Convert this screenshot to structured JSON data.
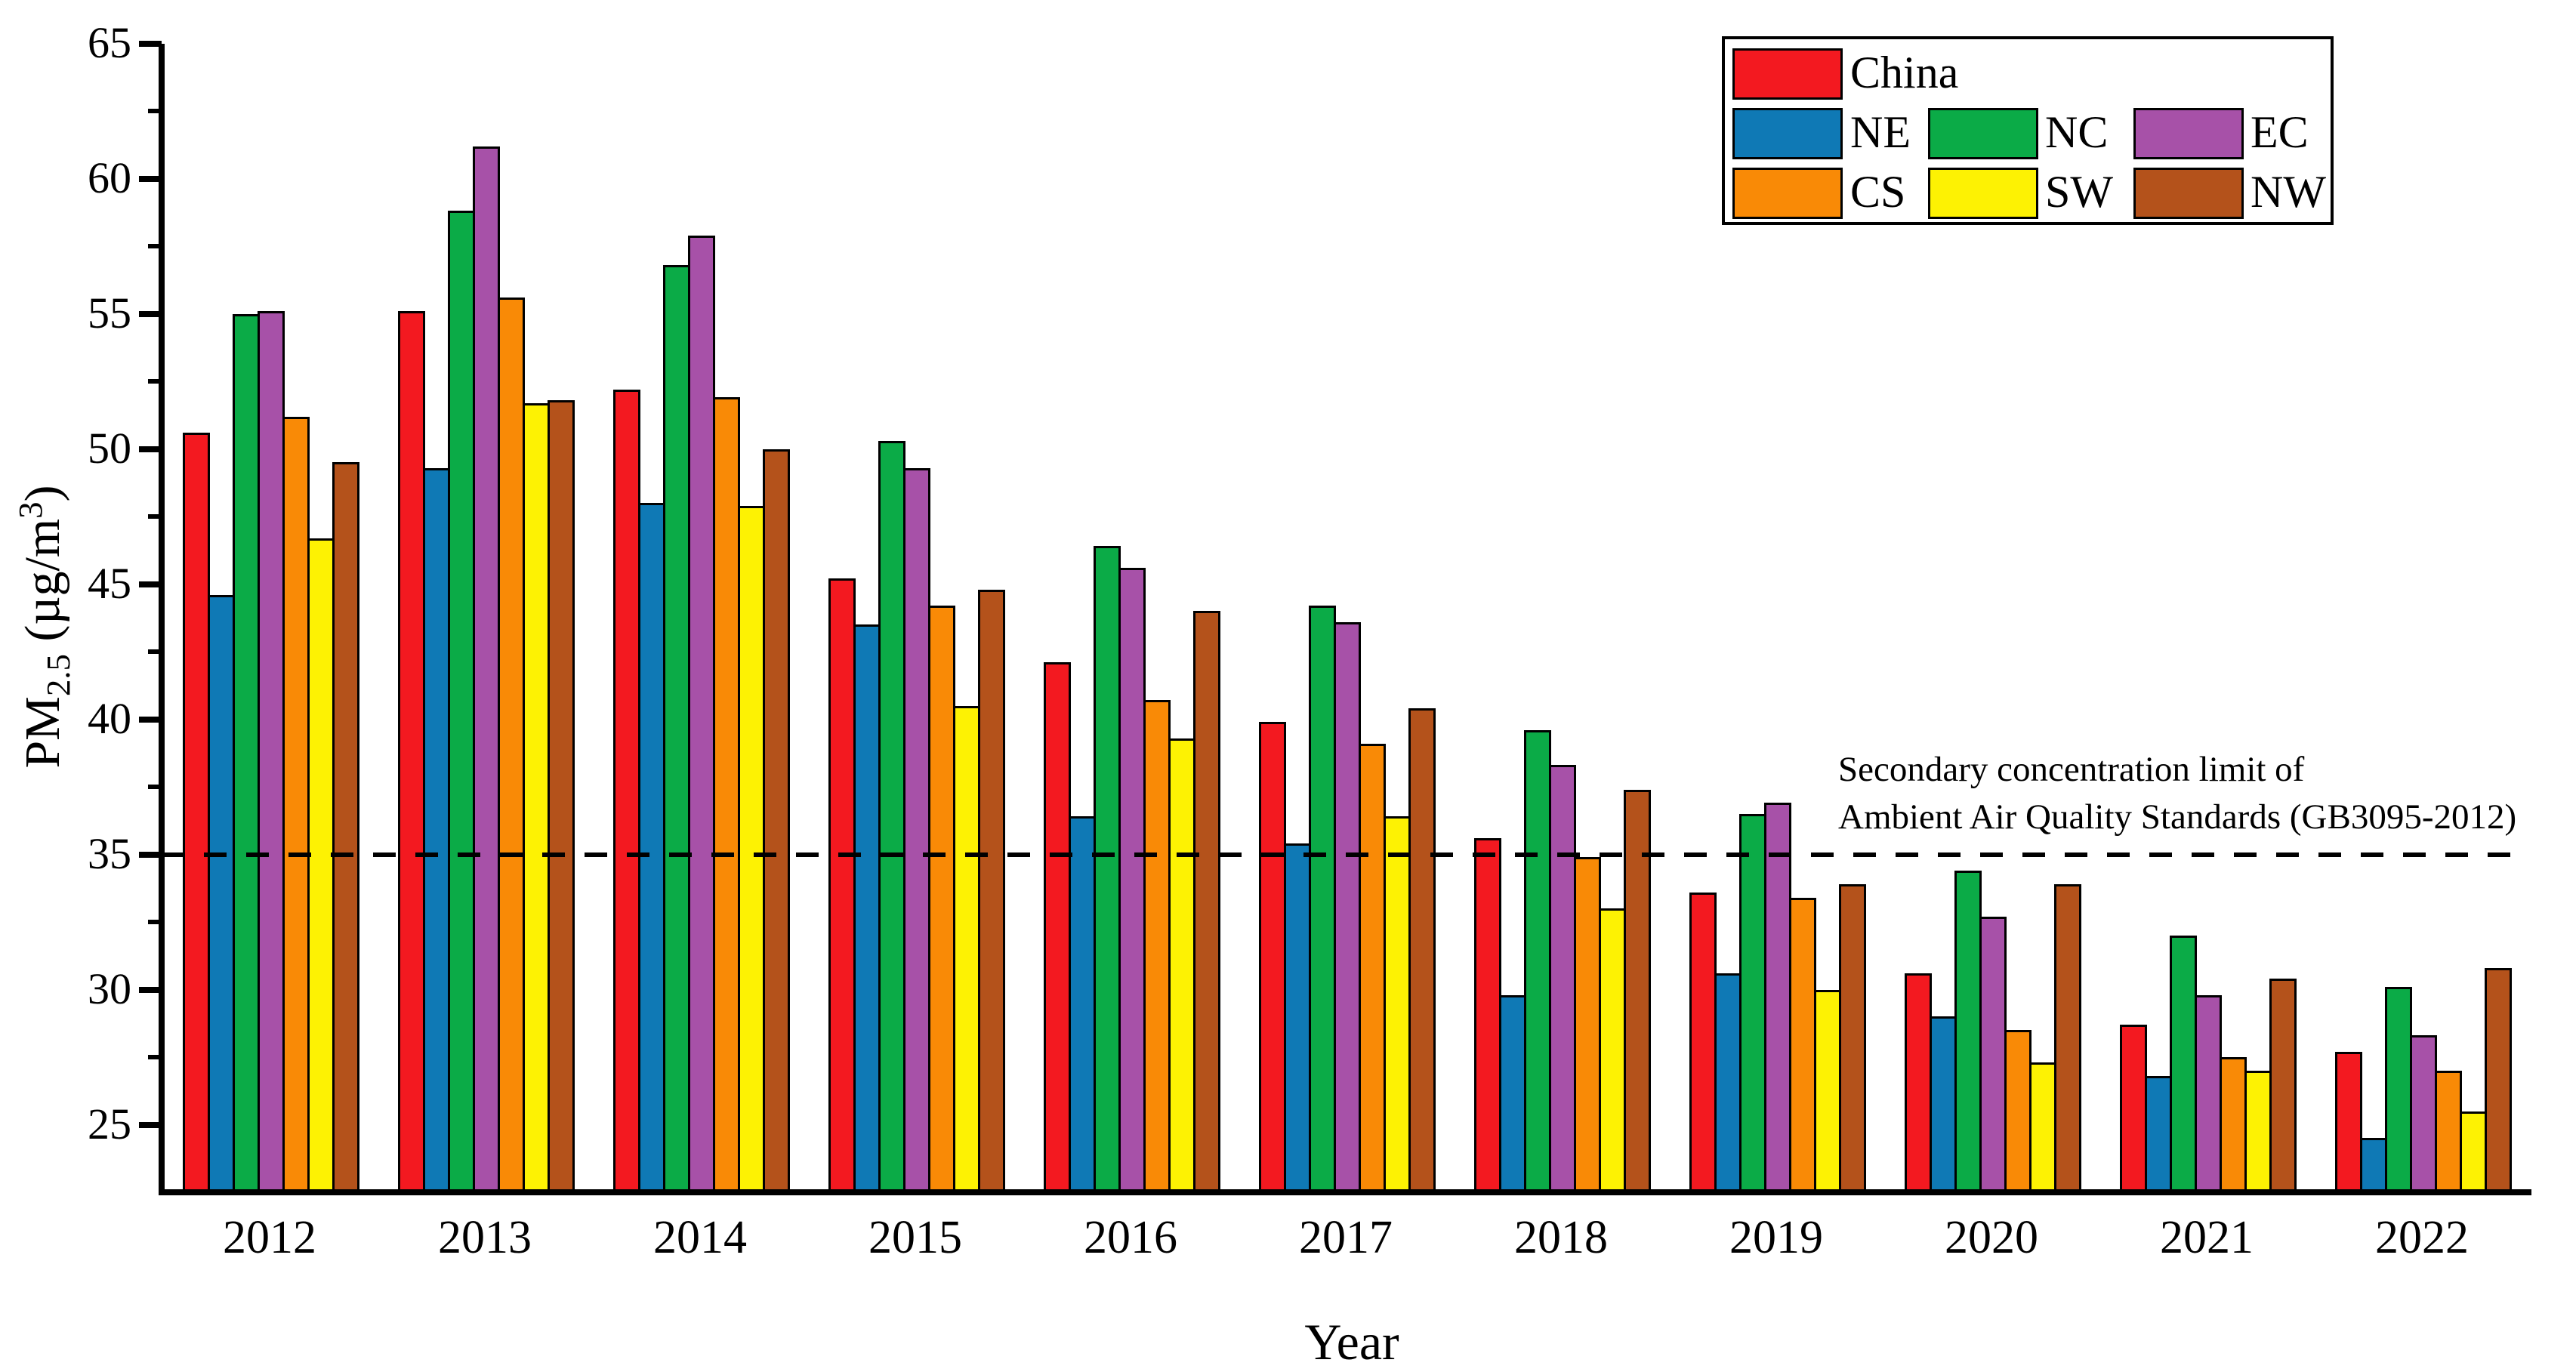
{
  "chart_data": {
    "type": "bar",
    "title": "",
    "xlabel": "Year",
    "ylabel": "PM2.5 (µg/m³)",
    "ylabel_parts": {
      "prefix": "PM",
      "subscript": "2.5",
      "unit_open": " (µg/m",
      "superscript": "3",
      "unit_close": ")"
    },
    "categories": [
      "2012",
      "2013",
      "2014",
      "2015",
      "2016",
      "2017",
      "2018",
      "2019",
      "2020",
      "2021",
      "2022"
    ],
    "series": [
      {
        "name": "China",
        "color": "#F31920",
        "values": [
          50.6,
          55.1,
          52.2,
          45.2,
          42.1,
          39.9,
          35.6,
          33.6,
          30.6,
          28.7,
          27.7
        ]
      },
      {
        "name": "NE",
        "color": "#0F79B5",
        "values": [
          44.6,
          49.3,
          48.0,
          43.5,
          36.4,
          35.4,
          29.8,
          30.6,
          29.0,
          26.8,
          24.5
        ]
      },
      {
        "name": "NC",
        "color": "#0BAB47",
        "values": [
          55.0,
          58.8,
          56.8,
          50.3,
          46.4,
          44.2,
          39.6,
          36.5,
          34.4,
          32.0,
          30.1
        ]
      },
      {
        "name": "EC",
        "color": "#A751A8",
        "values": [
          55.1,
          61.2,
          57.9,
          49.3,
          45.6,
          43.6,
          38.3,
          36.9,
          32.7,
          29.8,
          28.3
        ]
      },
      {
        "name": "CS",
        "color": "#F98A06",
        "values": [
          51.2,
          55.6,
          51.9,
          44.2,
          40.7,
          39.1,
          34.9,
          33.4,
          28.5,
          27.5,
          27.0
        ]
      },
      {
        "name": "SW",
        "color": "#FDF203",
        "values": [
          46.7,
          51.7,
          47.9,
          40.5,
          39.3,
          36.4,
          33.0,
          30.0,
          27.3,
          27.0,
          25.5
        ]
      },
      {
        "name": "NW",
        "color": "#B4521B",
        "values": [
          49.5,
          51.8,
          50.0,
          44.8,
          44.0,
          40.4,
          37.4,
          33.9,
          33.9,
          30.4,
          30.8
        ]
      }
    ],
    "ylim": [
      22.5,
      65
    ],
    "yticks": [
      25,
      30,
      35,
      40,
      45,
      50,
      55,
      60,
      65
    ],
    "minor_yticks": [
      27.5,
      32.5,
      37.5,
      42.5,
      47.5,
      52.5,
      57.5,
      62.5
    ],
    "grid": false,
    "legend_position": "top-right",
    "legend_rows": [
      [
        "China"
      ],
      [
        "NE",
        "NC",
        "EC"
      ],
      [
        "CS",
        "SW",
        "NW"
      ]
    ],
    "reference_line": {
      "value": 35,
      "style": "dashed",
      "color": "#000000",
      "label_line1": "Secondary concentration limit of",
      "label_line2": "Ambient Air Quality Standards (GB3095-2012)"
    }
  },
  "colors": {
    "axis": "#000000",
    "background": "#FFFFFF"
  }
}
